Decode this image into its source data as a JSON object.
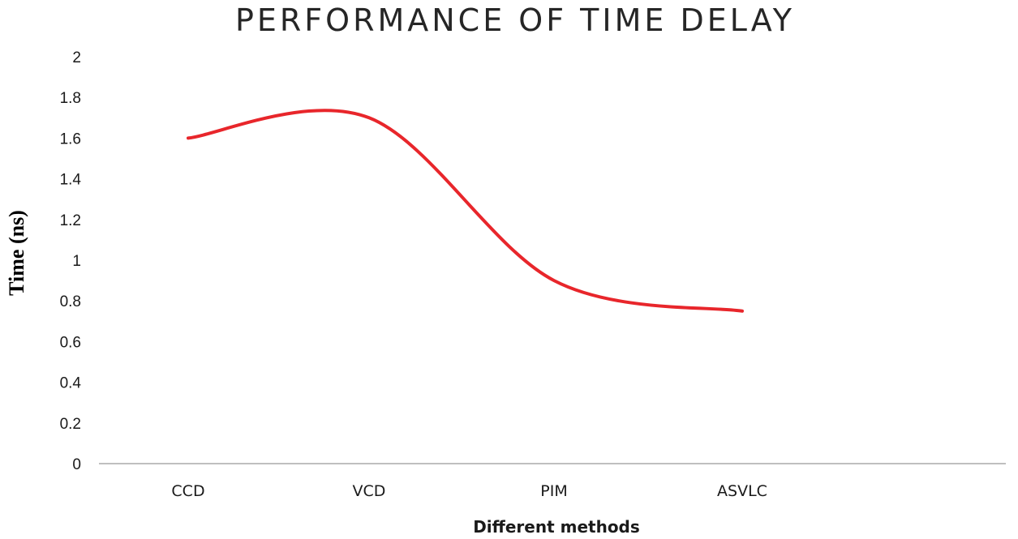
{
  "chart_data": {
    "type": "line",
    "title": "PERFORMANCE OF TIME DELAY",
    "xlabel": "Different methods",
    "ylabel": "Time (ns)",
    "categories": [
      "CCD",
      "VCD",
      "PIM",
      "ASVLC"
    ],
    "series": [
      {
        "values": [
          1.6,
          1.7,
          0.9,
          0.75
        ],
        "color": "#e8262b"
      }
    ],
    "ylim": [
      0,
      2
    ],
    "yticks": [
      "0",
      "0.2",
      "0.4",
      "0.6",
      "0.8",
      "1",
      "1.2",
      "1.4",
      "1.6",
      "1.8",
      "2"
    ],
    "grid": false,
    "smooth": true,
    "legend": "none"
  }
}
